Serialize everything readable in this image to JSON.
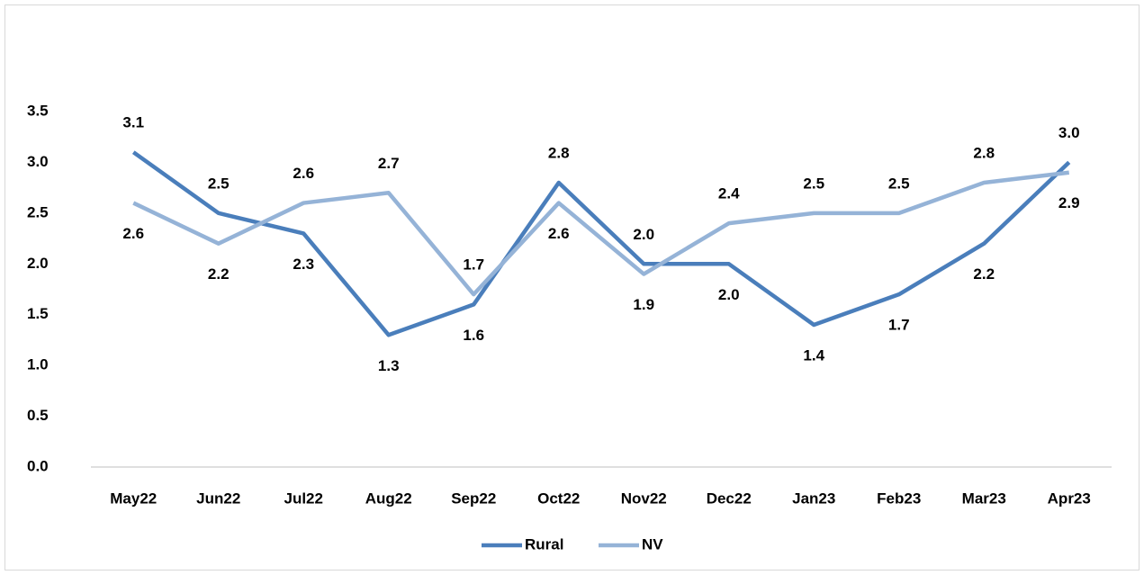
{
  "chart_data": {
    "type": "line",
    "categories": [
      "May22",
      "Jun22",
      "Jul22",
      "Aug22",
      "Sep22",
      "Oct22",
      "Nov22",
      "Dec22",
      "Jan23",
      "Feb23",
      "Mar23",
      "Apr23"
    ],
    "series": [
      {
        "name": "Rural",
        "color": "#4a7ebb",
        "values": [
          3.1,
          2.5,
          2.3,
          1.3,
          1.6,
          2.8,
          2.0,
          2.0,
          1.4,
          1.7,
          2.2,
          3.0
        ],
        "value_labels": [
          "3.1",
          "2.5",
          "2.3",
          "1.3",
          "1.6",
          "2.8",
          "2.0",
          "2.0",
          "1.4",
          "1.7",
          "2.2",
          "3.0"
        ]
      },
      {
        "name": "NV",
        "color": "#95b3d7",
        "values": [
          2.6,
          2.2,
          2.6,
          2.7,
          1.7,
          2.6,
          1.9,
          2.4,
          2.5,
          2.5,
          2.8,
          2.9
        ],
        "value_labels": [
          "2.6",
          "2.2",
          "2.6",
          "2.7",
          "1.7",
          "2.6",
          "1.9",
          "2.4",
          "2.5",
          "2.5",
          "2.8",
          "2.9"
        ]
      }
    ],
    "ylim": [
      0,
      3.5
    ],
    "yticks": [
      {
        "value": 0,
        "label": "0.0"
      },
      {
        "value": 0.5,
        "label": "0.5"
      },
      {
        "value": 1,
        "label": "1.0"
      },
      {
        "value": 1.5,
        "label": "1.5"
      },
      {
        "value": 2,
        "label": "2.0"
      },
      {
        "value": 2.5,
        "label": "2.5"
      },
      {
        "value": 3,
        "label": "3.0"
      },
      {
        "value": 3.5,
        "label": "3.5"
      }
    ],
    "grid": false,
    "legend": "bottom"
  }
}
